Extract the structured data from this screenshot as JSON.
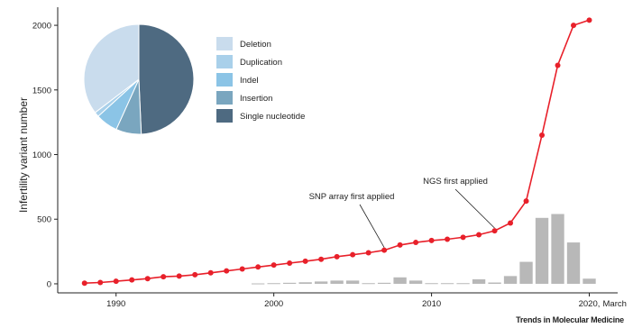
{
  "credit": "Trends in Molecular Medicine",
  "chart_data": {
    "type": "line",
    "ylabel": "Infertility variant number",
    "x_ticks": [
      1990,
      2000,
      2010,
      2020
    ],
    "x_extra_tick_label": "March",
    "y_ticks": [
      0,
      500,
      1000,
      1500,
      2000
    ],
    "xlim": [
      1986.3,
      2021.8
    ],
    "ylim": [
      -70,
      2140
    ],
    "grid": false,
    "line_color": "#e8202a",
    "bar_color": "#b8b8b8",
    "series": [
      {
        "type": "line",
        "x": [
          1988,
          1989,
          1990,
          1991,
          1992,
          1993,
          1994,
          1995,
          1996,
          1997,
          1998,
          1999,
          2000,
          2001,
          2002,
          2003,
          2004,
          2005,
          2006,
          2007,
          2008,
          2009,
          2010,
          2011,
          2012,
          2013,
          2014,
          2015,
          2016,
          2017,
          2018,
          2019,
          2020
        ],
        "values": [
          5,
          10,
          20,
          30,
          40,
          55,
          60,
          70,
          85,
          100,
          115,
          130,
          145,
          160,
          175,
          190,
          210,
          225,
          240,
          260,
          300,
          320,
          335,
          345,
          360,
          380,
          410,
          470,
          640,
          1150,
          1690,
          2000,
          2040
        ]
      },
      {
        "type": "bar",
        "x": [
          1999,
          2000,
          2001,
          2002,
          2003,
          2004,
          2005,
          2006,
          2007,
          2008,
          2009,
          2010,
          2011,
          2012,
          2013,
          2014,
          2015,
          2016,
          2017,
          2018,
          2019,
          2020
        ],
        "values": [
          3,
          5,
          8,
          12,
          18,
          25,
          25,
          5,
          8,
          50,
          25,
          5,
          5,
          5,
          35,
          10,
          60,
          170,
          510,
          540,
          320,
          40
        ]
      }
    ],
    "pie": {
      "slices": [
        {
          "name": "Deletion",
          "value": 38,
          "color": "#c9dced"
        },
        {
          "name": "Duplication",
          "value": 1.5,
          "color": "#a9d0ea"
        },
        {
          "name": "Indel",
          "value": 7,
          "color": "#8bc4e6"
        },
        {
          "name": "Insertion",
          "value": 8,
          "color": "#7aa6bf"
        },
        {
          "name": "Single nucleotide",
          "value": 53,
          "color": "#4e6a81"
        }
      ]
    },
    "annotations": [
      {
        "text": "SNP array first applied",
        "x": 2007,
        "y": 260
      },
      {
        "text": "NGS first applied",
        "x": 2014,
        "y": 410
      }
    ]
  }
}
